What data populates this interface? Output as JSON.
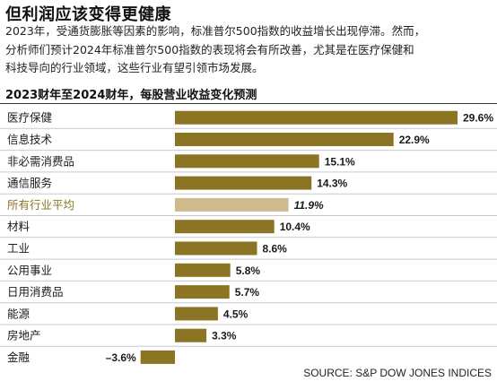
{
  "headline": "但利润应该变得更健康",
  "intro_lines": [
    "2023年，受通货膨胀等因素的影响，标准普尔500指数的收益增长出现停滞。然而，",
    "分析师们预计2024年标准普尔500指数的表现将会有所改善，尤其是在医疗保健和",
    "科技导向的行业领域，这些行业有望引领市场发展。"
  ],
  "source": "SOURCE: S&P DOW JONES INDICES",
  "colors": {
    "bar": "#8b7424",
    "highlight_bar": "#cdbb8c",
    "highlight_text": "#8b7424",
    "divider": "#c9c9c9"
  },
  "chart_data": {
    "type": "bar",
    "orientation": "horizontal",
    "title": "2023财年至2024财年，每股营业收益变化预测",
    "unit": "%",
    "highlight": "所有行业平均",
    "categories": [
      "医疗保健",
      "信息技术",
      "非必需消费品",
      "通信服务",
      "所有行业平均",
      "材料",
      "工业",
      "公用事业",
      "日用消费品",
      "能源",
      "房地产",
      "金融"
    ],
    "values": [
      29.6,
      22.9,
      15.1,
      14.3,
      11.9,
      10.4,
      8.6,
      5.8,
      5.7,
      4.5,
      3.3,
      -3.6
    ],
    "value_labels": [
      "29.6%",
      "22.9%",
      "15.1%",
      "14.3%",
      "11.9%",
      "10.4%",
      "8.6%",
      "5.8%",
      "5.7%",
      "4.5%",
      "3.3%",
      "–3.6%"
    ],
    "grid": false
  }
}
